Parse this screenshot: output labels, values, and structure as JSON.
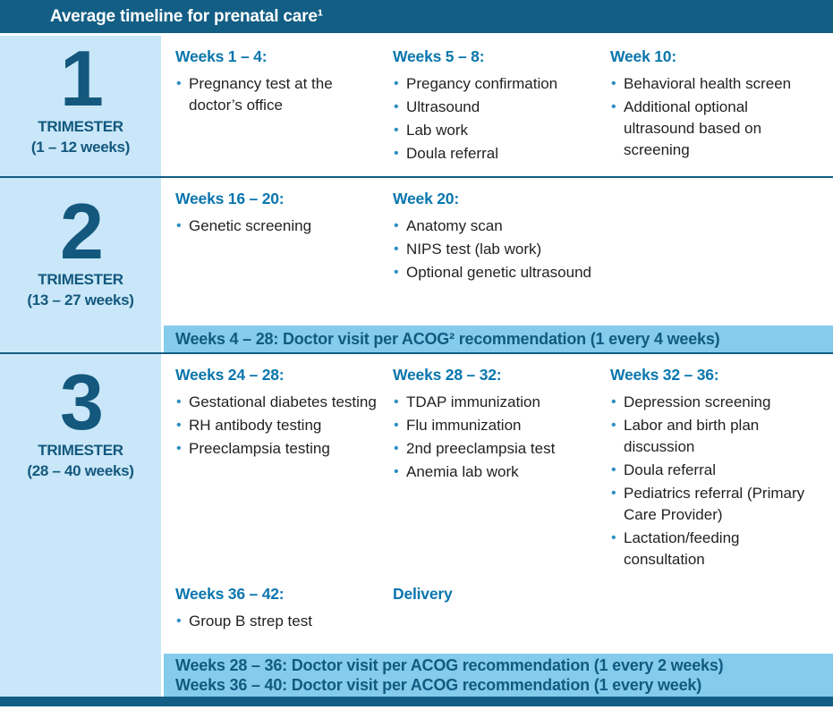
{
  "title": "Average timeline for prenatal care¹",
  "colors": {
    "header_bg": "#135e84",
    "panel_bg": "#c9e7f8",
    "banner_bg": "#85ccec",
    "heading_blue": "#0a76ad",
    "dark_navy": "#14587e",
    "body_text": "#231f20",
    "bullet_blue": "#2e8fc0"
  },
  "trimesters": [
    {
      "number": "1",
      "label": "TRIMESTER",
      "range": "(1 – 12 weeks)",
      "columns": [
        {
          "heading": "Weeks 1 – 4:",
          "items": [
            "Pregnancy test at the doctor’s office"
          ]
        },
        {
          "heading": "Weeks 5 – 8:",
          "items": [
            "Pregancy confirmation",
            "Ultrasound",
            "Lab work",
            "Doula referral"
          ]
        },
        {
          "heading": "Week 10:",
          "items": [
            "Behavioral health screen",
            "Additional optional ultrasound based on screening"
          ]
        }
      ]
    },
    {
      "number": "2",
      "label": "TRIMESTER",
      "range": "(13 – 27 weeks)",
      "columns": [
        {
          "heading": "Weeks 16 – 20:",
          "items": [
            "Genetic screening"
          ]
        },
        {
          "heading": "Week 20:",
          "items": [
            "Anatomy scan",
            "NIPS test (lab work)",
            "Optional genetic ultrasound"
          ]
        }
      ],
      "banner": {
        "lines": [
          "Weeks 4 – 28: Doctor visit per ACOG² recommendation (1 every 4 weeks)"
        ]
      }
    },
    {
      "number": "3",
      "label": "TRIMESTER",
      "range": "(28 – 40 weeks)",
      "columns": [
        {
          "heading": "Weeks 24 – 28:",
          "items": [
            "Gestational diabetes testing",
            "RH antibody testing",
            "Preeclampsia testing"
          ]
        },
        {
          "heading": "Weeks 28 – 32:",
          "items": [
            "TDAP immunization",
            "Flu immunization",
            "2nd preeclampsia test",
            "Anemia lab work"
          ]
        },
        {
          "heading": "Weeks 32 – 36:",
          "items": [
            "Depression screening",
            "Labor and birth plan discussion",
            "Doula referral",
            "Pediatrics referral (Primary Care Provider)",
            "Lactation/feeding consultation"
          ]
        }
      ],
      "extra_columns": [
        {
          "heading": "Weeks 36 – 42:",
          "items": [
            "Group B strep test"
          ]
        },
        {
          "heading": "Delivery",
          "items": []
        }
      ],
      "banner": {
        "lines": [
          "Weeks 28 – 36: Doctor visit per ACOG recommendation (1 every 2 weeks)",
          "Weeks 36 – 40: Doctor visit per ACOG recommendation (1 every week)"
        ]
      }
    }
  ]
}
